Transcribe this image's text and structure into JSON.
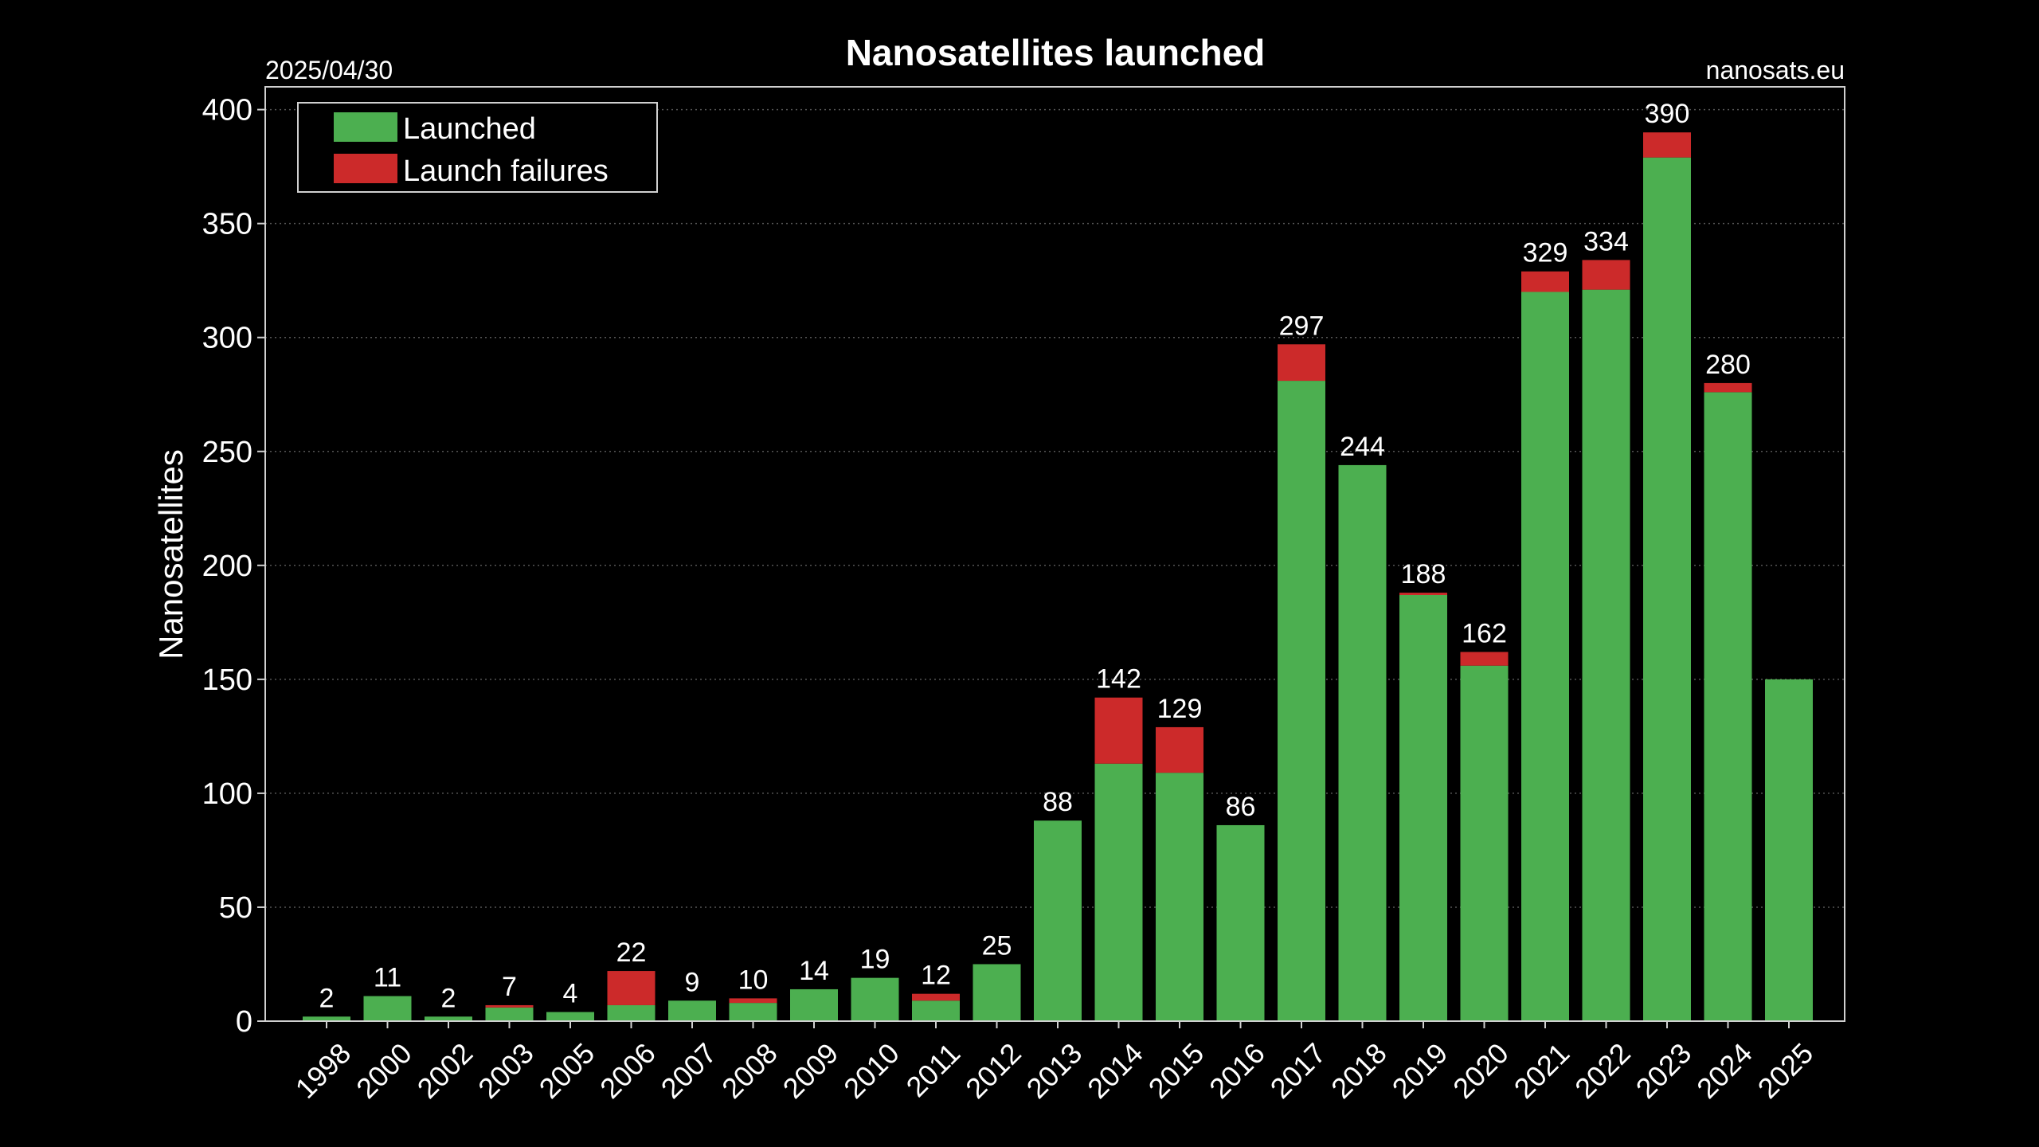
{
  "header": {
    "date": "2025/04/30",
    "source": "nanosats.eu"
  },
  "colors": {
    "background": "#000000",
    "launched": "#4caf50",
    "failures": "#cc2a2a",
    "grid": "#555555",
    "frame": "#d0d0d0",
    "text": "#ffffff"
  },
  "chart_data": {
    "type": "bar",
    "stacked": true,
    "title": "Nanosatellites launched",
    "xlabel": "",
    "ylabel": "Nanosatellites",
    "ylim": [
      0,
      410
    ],
    "yticks": [
      0,
      50,
      100,
      150,
      200,
      250,
      300,
      350,
      400
    ],
    "grid": "horizontal dotted",
    "legend_position": "top-left",
    "categories": [
      "1998",
      "2000",
      "2002",
      "2003",
      "2005",
      "2006",
      "2007",
      "2008",
      "2009",
      "2010",
      "2011",
      "2012",
      "2013",
      "2014",
      "2015",
      "2016",
      "2017",
      "2018",
      "2019",
      "2020",
      "2021",
      "2022",
      "2023",
      "2024",
      "2025"
    ],
    "series": [
      {
        "name": "Launched",
        "color": "#4caf50",
        "values": [
          2,
          11,
          2,
          6,
          4,
          7,
          9,
          8,
          14,
          19,
          9,
          25,
          88,
          113,
          109,
          86,
          281,
          244,
          187,
          156,
          320,
          321,
          379,
          276,
          150
        ]
      },
      {
        "name": "Launch failures",
        "color": "#cc2a2a",
        "values": [
          0,
          0,
          0,
          1,
          0,
          15,
          0,
          2,
          0,
          0,
          3,
          0,
          0,
          29,
          20,
          0,
          16,
          0,
          1,
          6,
          9,
          13,
          11,
          4,
          0
        ]
      }
    ],
    "totals_labels": [
      "2",
      "11",
      "2",
      "7",
      "4",
      "22",
      "9",
      "10",
      "14",
      "19",
      "12",
      "25",
      "88",
      "142",
      "129",
      "86",
      "297",
      "244",
      "188",
      "162",
      "329",
      "334",
      "390",
      "280",
      ""
    ]
  }
}
